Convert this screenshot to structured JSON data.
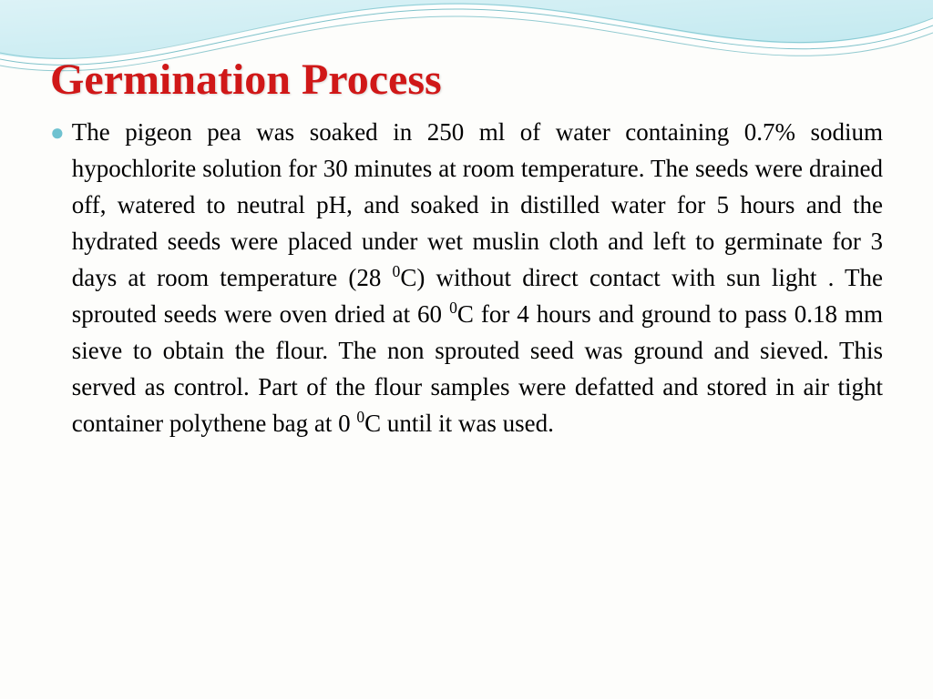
{
  "title": "Germination Process",
  "bullet_glyph": "●",
  "body_html": "The pigeon pea was soaked in 250 ml of water containing 0.7% sodium hypochlorite solution for 30 minutes at room temperature. The seeds were drained off, watered to neutral pH, and soaked in distilled water for 5 hours and the hydrated seeds were placed under wet muslin cloth and left to germinate for 3 days at room temperature (28 <sup>0</sup>C) without direct contact with sun light . The sprouted seeds were oven dried at 60 <sup>0</sup>C for 4 hours and ground to pass 0.18 mm sieve to obtain the flour. The non sprouted seed was ground and sieved. This served as control. Part of the flour samples were defatted and stored in air tight container polythene bag at 0 <sup>0</sup>C until it was used.",
  "colors": {
    "title": "#d01818",
    "bullet": "#6fc2d0",
    "wave_fill": "#8fd4e0",
    "wave_line": "#2a9aa8",
    "background": "#fdfdfb",
    "text": "#000000"
  },
  "typography": {
    "title_fontsize": 48,
    "body_fontsize": 27,
    "body_lineheight": 40,
    "family": "Palatino Linotype"
  }
}
